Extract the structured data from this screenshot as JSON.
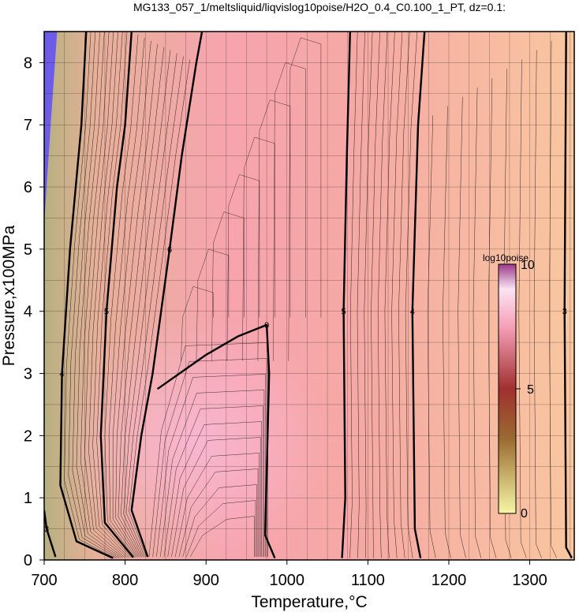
{
  "title": "MG133_057_1/meltsliquid/liqvislog10poise/H2O_0.4_C0.100_1_PT, dz=0.1:",
  "chart_data": {
    "type": "heatmap",
    "title": "MG133_057_1/meltsliquid/liqvislog10poise/H2O_0.4_C0.100_1_PT, dz=0.1:",
    "xlabel": "Temperature,°C",
    "ylabel": "Pressure,x100MPa",
    "xlim": [
      700,
      1355
    ],
    "ylim": [
      0,
      8.5
    ],
    "x_ticks": [
      700,
      800,
      900,
      1000,
      1100,
      1200,
      1300
    ],
    "y_ticks": [
      0,
      1,
      2,
      3,
      4,
      5,
      6,
      7,
      8
    ],
    "grid": true,
    "colorbar": {
      "label": "log10poise",
      "range": [
        0,
        10
      ],
      "ticks": [
        0,
        5,
        10
      ],
      "placement": "right-inside"
    },
    "contours_bold": [
      {
        "level": 3,
        "label": "3",
        "points": [
          [
            714,
            0.05
          ],
          [
            703,
            0.5
          ],
          [
            700,
            0.8
          ]
        ]
      },
      {
        "level": 4,
        "label": "4",
        "points": [
          [
            785,
            0.03
          ],
          [
            740,
            0.3
          ],
          [
            720,
            1.2
          ],
          [
            722,
            3
          ],
          [
            732,
            5
          ],
          [
            746,
            7
          ],
          [
            752,
            8.5
          ]
        ]
      },
      {
        "level": 5,
        "label": "5",
        "points": [
          [
            810,
            0.04
          ],
          [
            775,
            0.6
          ],
          [
            770,
            2
          ],
          [
            777,
            4
          ],
          [
            790,
            6
          ],
          [
            800,
            7
          ],
          [
            808,
            8.5
          ]
        ]
      },
      {
        "level": 6,
        "label": "6",
        "points": [
          [
            828,
            0.05
          ],
          [
            808,
            0.8
          ],
          [
            820,
            2
          ],
          [
            834,
            3
          ],
          [
            855,
            5
          ],
          [
            870,
            6.5
          ],
          [
            888,
            8
          ],
          [
            895,
            8.5
          ]
        ]
      },
      {
        "level": 9,
        "label": "9",
        "points": [
          [
            840,
            2.75
          ],
          [
            900,
            3.3
          ],
          [
            940,
            3.6
          ],
          [
            975,
            3.78
          ],
          [
            978,
            3
          ],
          [
            973,
            0.4
          ],
          [
            985,
            0.03
          ]
        ]
      },
      {
        "level": 5,
        "label": "5",
        "points": [
          [
            1068,
            0.03
          ],
          [
            1072,
            1
          ],
          [
            1070,
            4
          ],
          [
            1074,
            6.5
          ],
          [
            1078,
            8.5
          ]
        ]
      },
      {
        "level": 4,
        "label": "4",
        "points": [
          [
            1165,
            0.03
          ],
          [
            1158,
            0.5
          ],
          [
            1155,
            4
          ],
          [
            1162,
            7
          ],
          [
            1170,
            8.5
          ]
        ]
      },
      {
        "level": 3,
        "label": "3",
        "points": [
          [
            1352,
            0.03
          ],
          [
            1345,
            0.2
          ],
          [
            1343,
            4
          ],
          [
            1345,
            8.5
          ]
        ]
      }
    ]
  },
  "axes": {
    "x_tick_labels": [
      "700",
      "800",
      "900",
      "1000",
      "1100",
      "1200",
      "1300"
    ],
    "y_tick_labels": [
      "0",
      "1",
      "2",
      "3",
      "4",
      "5",
      "6",
      "7",
      "8"
    ],
    "colorbar_tick_labels": [
      "0",
      "5",
      "10"
    ]
  },
  "colors": {
    "glassy": "#6c5ce8",
    "low_temp": "#c8b77a",
    "high_visc": "#f5a6b4",
    "peak_visc": "#f8b0c8",
    "high_temp": "#f9c6a0",
    "contour": "#000000"
  }
}
